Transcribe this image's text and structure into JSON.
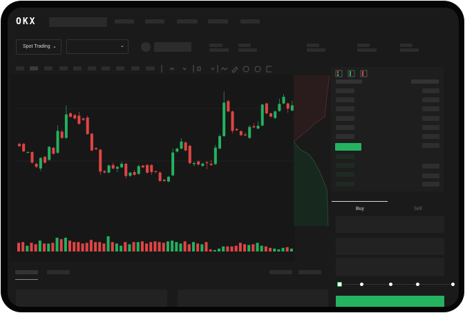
{
  "header": {
    "logo": "OKX"
  },
  "market_bar": {
    "mode_selector": "Spot Trading"
  },
  "order_form": {
    "tabs": [
      "Buy",
      "Sell"
    ],
    "active_tab": "Buy",
    "leverage_slider_level": 0
  },
  "colors": {
    "up": "#25b060",
    "down": "#e04545",
    "buy_button": "#25b361",
    "background": "#1a1a1a"
  },
  "icons": [
    "logo-okx",
    "chevron-down-icon",
    "indicator-icon",
    "draw-line-icon",
    "pencil-icon",
    "camera-icon",
    "settings-icon",
    "fullscreen-icon",
    "orderbook-both-icon",
    "orderbook-buy-icon",
    "orderbook-sell-icon"
  ],
  "chart_data": {
    "type": "candlestick",
    "candles": [
      [
        55,
        56,
        52,
        52.5
      ],
      [
        55,
        56,
        46,
        47
      ],
      [
        45.5,
        47,
        45,
        46.3
      ],
      [
        46.3,
        47,
        34,
        35
      ],
      [
        33.8,
        35,
        29.5,
        30.5
      ],
      [
        28.8,
        41,
        26,
        40
      ],
      [
        41.3,
        42,
        34,
        35
      ],
      [
        38,
        52.8,
        37,
        51.8
      ],
      [
        50.8,
        51.8,
        43.5,
        44.5
      ],
      [
        45.5,
        75,
        44.5,
        68.8
      ],
      [
        68,
        70,
        60.3,
        61.3
      ],
      [
        61.3,
        96,
        60.3,
        86.3
      ],
      [
        87.5,
        89,
        82.8,
        83.8
      ],
      [
        85.5,
        87,
        81,
        82
      ],
      [
        85,
        89,
        75.3,
        76.3
      ],
      [
        82,
        83,
        79.5,
        80.5
      ],
      [
        83,
        85,
        64.5,
        65.5
      ],
      [
        65.8,
        66.8,
        47,
        48
      ],
      [
        50.5,
        51.5,
        48.3,
        49.3
      ],
      [
        48.8,
        49.8,
        22,
        25.5
      ],
      [
        26,
        27,
        23.5,
        24.5
      ],
      [
        24.5,
        33,
        23.5,
        32
      ],
      [
        32.5,
        35,
        27.8,
        28.8
      ],
      [
        28.5,
        31.5,
        25,
        30.5
      ],
      [
        30,
        36,
        29,
        33.8
      ],
      [
        33.8,
        34.8,
        18,
        20.8
      ],
      [
        21,
        25.3,
        20,
        24.3
      ],
      [
        25,
        27,
        21,
        22
      ],
      [
        23,
        33,
        22,
        31.3
      ],
      [
        31.8,
        32.8,
        29,
        30
      ],
      [
        32.5,
        33.5,
        23.3,
        24.3
      ],
      [
        32.5,
        33.5,
        22,
        25
      ],
      [
        25.8,
        26.8,
        24,
        25
      ],
      [
        24.5,
        25.5,
        14.5,
        15.5
      ],
      [
        16.8,
        17.8,
        14.5,
        15.5
      ],
      [
        15,
        21,
        14,
        20
      ],
      [
        21.5,
        50,
        20.5,
        45.8
      ],
      [
        46.8,
        51,
        45.8,
        50
      ],
      [
        50,
        61,
        49,
        57.5
      ],
      [
        56.5,
        57.5,
        47,
        48
      ],
      [
        53,
        54,
        33.5,
        34.5
      ],
      [
        33.5,
        36,
        31,
        34.5
      ],
      [
        36.3,
        37.3,
        32,
        33
      ],
      [
        31.5,
        35,
        30.5,
        34
      ],
      [
        35.5,
        36.5,
        28,
        34.5
      ],
      [
        33.8,
        38,
        31.5,
        32.5
      ],
      [
        33.5,
        54,
        32.5,
        51
      ],
      [
        50,
        65,
        49,
        63.3
      ],
      [
        63.3,
        110.8,
        62.3,
        98.8
      ],
      [
        100.5,
        102,
        88.5,
        89.5
      ],
      [
        89.5,
        90.5,
        66,
        68.8
      ],
      [
        70.8,
        71.8,
        68.5,
        69.5
      ],
      [
        68.5,
        69.5,
        63.3,
        64.3
      ],
      [
        65,
        67,
        63,
        64
      ],
      [
        61.3,
        75,
        60.3,
        73
      ],
      [
        73.8,
        77,
        71.5,
        72.5
      ],
      [
        71.3,
        79,
        70.3,
        74.3
      ],
      [
        74.5,
        97.8,
        73.5,
        96.8
      ],
      [
        98,
        99,
        86.5,
        87.5
      ],
      [
        87.5,
        88.5,
        83,
        84
      ],
      [
        82.5,
        90.5,
        81.5,
        89.5
      ],
      [
        90,
        103,
        89,
        97.5
      ],
      [
        98,
        108,
        97,
        105
      ],
      [
        98,
        99,
        88,
        92.5
      ],
      [
        90.5,
        101,
        89.5,
        96
      ]
    ],
    "volume": [
      12,
      13,
      8,
      12,
      10,
      15,
      11,
      11,
      12,
      19,
      17,
      19,
      15,
      13,
      13,
      11,
      12,
      16,
      13,
      13,
      11,
      21,
      13,
      11,
      8,
      13,
      10,
      13,
      13,
      14,
      11,
      13,
      14,
      13,
      12,
      14,
      15,
      13,
      11,
      14,
      10,
      13,
      11,
      10,
      13,
      3,
      2,
      4,
      7,
      7,
      7,
      8,
      12,
      10,
      9,
      10,
      12,
      8,
      7,
      5,
      4,
      3,
      5,
      6,
      4
    ],
    "grid": true,
    "axes_labels": false
  }
}
